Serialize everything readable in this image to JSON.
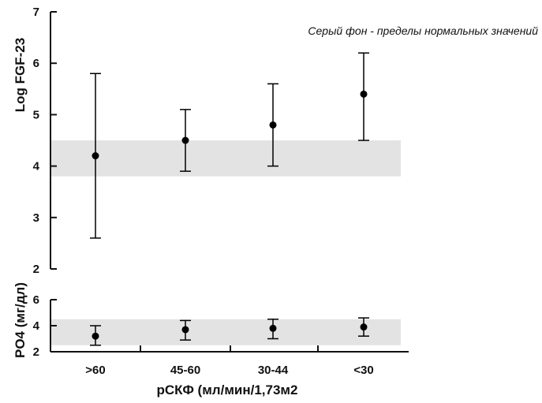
{
  "chart_data": [
    {
      "type": "scatter",
      "annotation": "Серый фон - пределы нормальных значений",
      "ylabel": "Log FGF-23",
      "categories": [
        ">60",
        "45-60",
        "30-44",
        "<30"
      ],
      "ylim": [
        2,
        7
      ],
      "yticks": [
        "2",
        "3",
        "4",
        "5",
        "6",
        "7"
      ],
      "normal_range": [
        3.8,
        4.5
      ],
      "normal_range_color": "#e3e3e3",
      "series": [
        {
          "values": [
            4.2,
            4.5,
            4.8,
            5.4
          ],
          "error_low": [
            2.6,
            3.9,
            4.0,
            4.5
          ],
          "error_high": [
            5.8,
            5.1,
            5.6,
            6.2
          ]
        }
      ]
    },
    {
      "type": "scatter",
      "ylabel": "PO4 (мг/дл)",
      "categories": [
        ">60",
        "45-60",
        "30-44",
        "<30"
      ],
      "ylim": [
        2,
        6
      ],
      "yticks": [
        "2",
        "4",
        "6"
      ],
      "normal_range": [
        2.5,
        4.5
      ],
      "normal_range_color": "#e3e3e3",
      "series": [
        {
          "values": [
            3.2,
            3.7,
            3.8,
            3.9
          ],
          "error_low": [
            2.5,
            2.9,
            3.0,
            3.2
          ],
          "error_high": [
            4.0,
            4.4,
            4.5,
            4.6
          ]
        }
      ]
    }
  ],
  "xlabel": "рСКФ (мл/мин/1,73м2",
  "x_tick_labels": [
    ">60",
    "45-60",
    "30-44",
    "<30"
  ],
  "colors": {
    "marker": "#000000",
    "axis": "#111111",
    "band": "#e3e3e3"
  }
}
